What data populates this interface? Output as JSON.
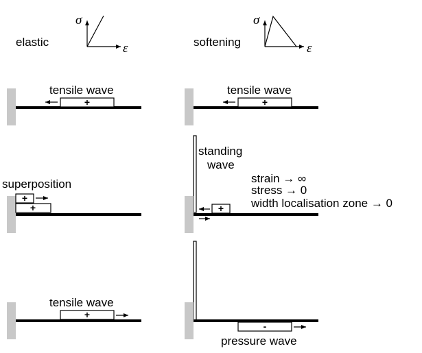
{
  "elastic": {
    "label": "elastic",
    "sigma": "σ",
    "epsilon": "ε"
  },
  "softening": {
    "label": "softening",
    "sigma": "σ",
    "epsilon": "ε"
  },
  "panels": {
    "left_top_label": "tensile wave",
    "right_top_label": "tensile wave",
    "superposition_label": "superposition",
    "standing_wave_line1": "standing",
    "standing_wave_line2": "wave",
    "note_strain": "strain → ∞",
    "note_stress": "stress → 0",
    "note_width": "width localisation zone → 0",
    "left_bottom_label": "tensile wave",
    "pressure_label": "pressure wave"
  },
  "signs": {
    "plus": "+",
    "minus": "-"
  }
}
